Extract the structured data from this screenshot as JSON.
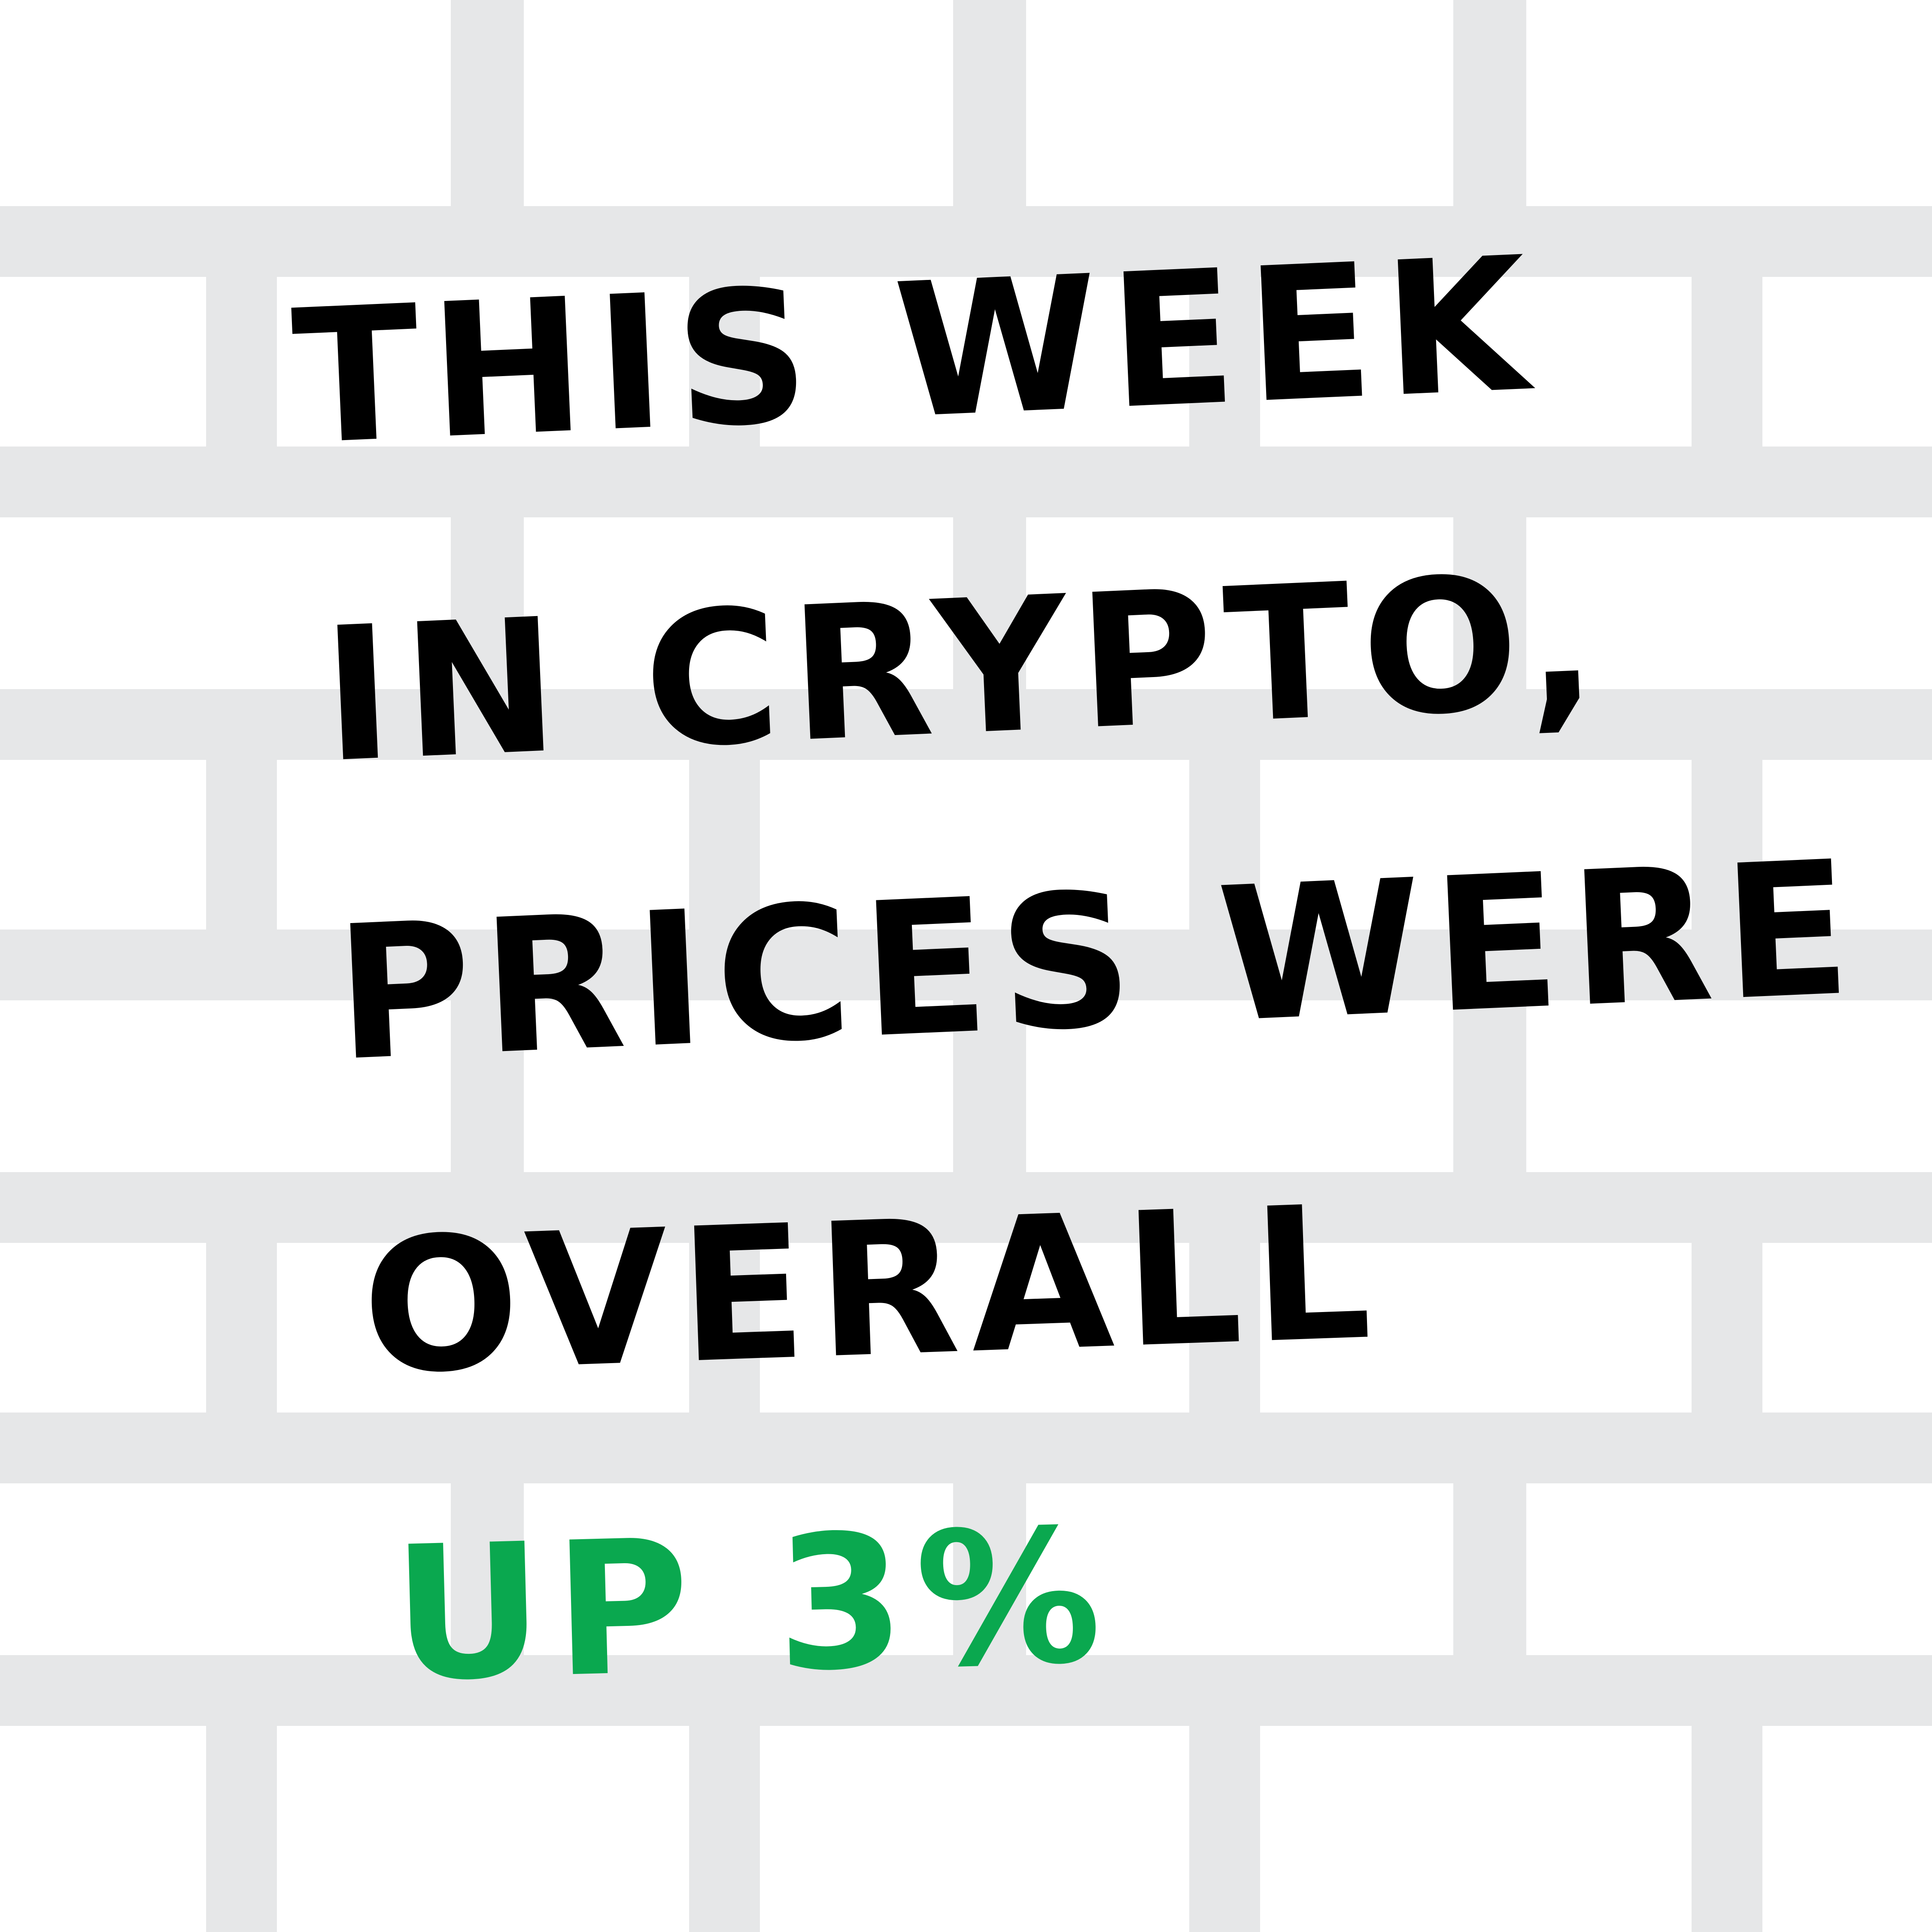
{
  "headline": {
    "line1": "THIS WEEK",
    "line2": "IN CRYPTO,",
    "line3": "PRICES WERE",
    "line4": "OVERALL"
  },
  "highlight": {
    "text": "UP 3%",
    "change_percent": 3
  },
  "colors": {
    "background": "#ffffff",
    "brick_mortar": "#e6e7e8",
    "text_primary": "#000000",
    "text_accent": "#0aa84f"
  }
}
